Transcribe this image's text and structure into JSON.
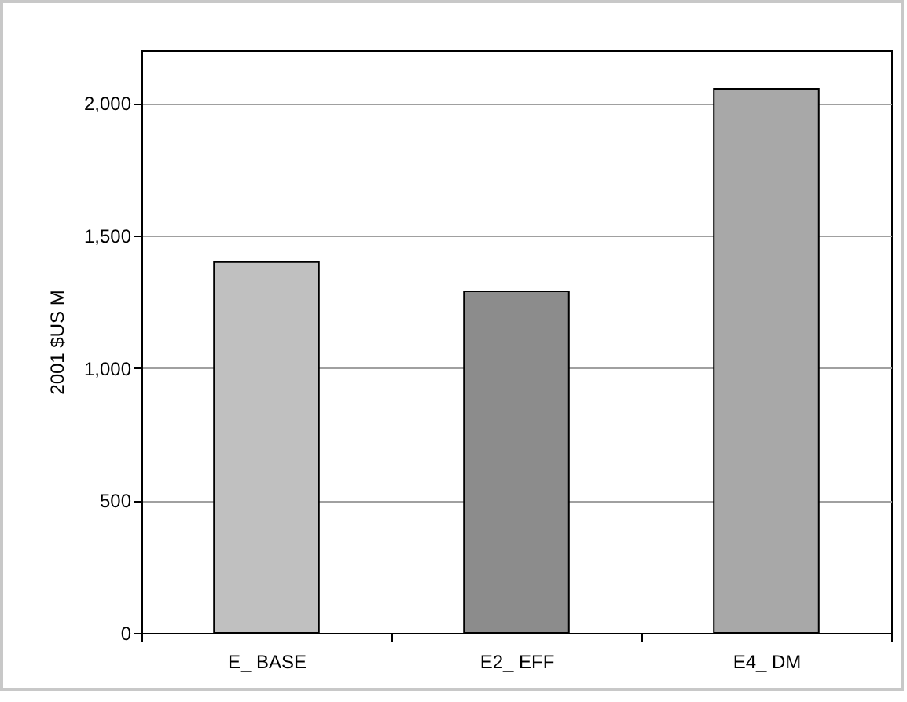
{
  "chart_data": {
    "type": "bar",
    "ylabel": "2001 $US M",
    "categories": [
      "E_ BASE",
      "E2_ EFF",
      "E4_ DM"
    ],
    "values": [
      1400,
      1290,
      2055
    ],
    "colors": [
      "#c0c0c0",
      "#8c8c8c",
      "#a8a8a8"
    ],
    "ylim": [
      0,
      2200
    ],
    "yticks": [
      {
        "value": 0,
        "label": "0"
      },
      {
        "value": 500,
        "label": "500"
      },
      {
        "value": 1000,
        "label": "1,000"
      },
      {
        "value": 1500,
        "label": "1,500"
      },
      {
        "value": 2000,
        "label": "2,000"
      }
    ],
    "grid": "y"
  }
}
